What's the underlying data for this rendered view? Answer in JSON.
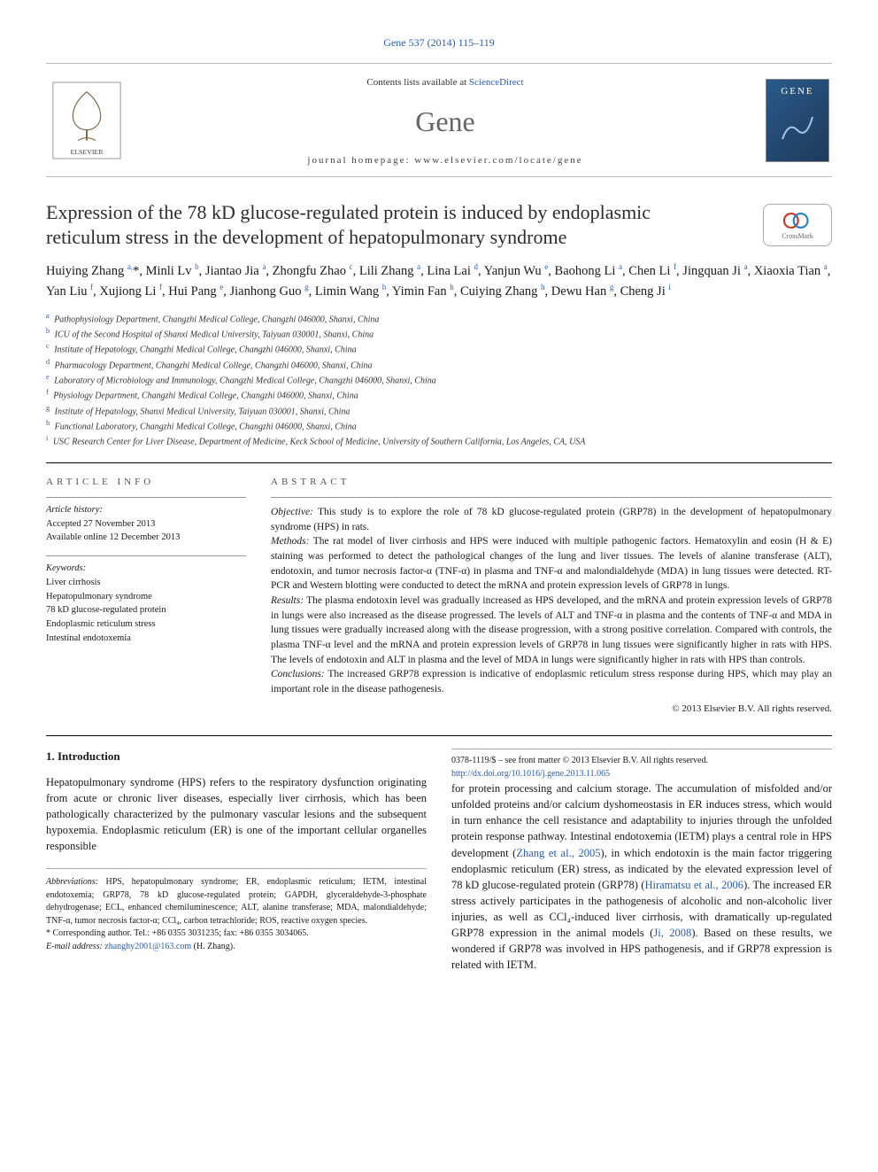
{
  "journal": {
    "top_citation": "Gene 537 (2014) 115–119",
    "contents_prefix": "Contents lists available at ",
    "contents_link": "ScienceDirect",
    "name": "Gene",
    "homepage": "journal homepage: www.elsevier.com/locate/gene",
    "cover_text": "GENE"
  },
  "paper": {
    "title": "Expression of the 78 kD glucose-regulated protein is induced by endoplasmic reticulum stress in the development of hepatopulmonary syndrome",
    "crossmark_label": "CrossMark"
  },
  "authors_html": "Huiying Zhang <sup>a,</sup>*, Minli Lv <sup>b</sup>, Jiantao Jia <sup>a</sup>, Zhongfu Zhao <sup>c</sup>, Lili Zhang <sup>a</sup>, Lina Lai <sup>d</sup>, Yanjun Wu <sup>e</sup>, Baohong Li <sup>a</sup>, Chen Li <sup>f</sup>, Jingquan Ji <sup>a</sup>, Xiaoxia Tian <sup>a</sup>, Yan Liu <sup>f</sup>, Xujiong Li <sup>f</sup>, Hui Pang <sup>e</sup>, Jianhong Guo <sup>g</sup>, Limin Wang <sup>h</sup>, Yimin Fan <sup>h</sup>, Cuiying Zhang <sup>h</sup>, Dewu Han <sup>g</sup>, Cheng Ji <sup>i</sup>",
  "affiliations": [
    {
      "key": "a",
      "text": "Pathophysiology Department, Changzhi Medical College, Changzhi 046000, Shanxi, China"
    },
    {
      "key": "b",
      "text": "ICU of the Second Hospital of Shanxi Medical University, Taiyuan 030001, Shanxi, China"
    },
    {
      "key": "c",
      "text": "Institute of Hepatology, Changzhi Medical College, Changzhi 046000, Shanxi, China"
    },
    {
      "key": "d",
      "text": "Pharmacology Department, Changzhi Medical College, Changzhi 046000, Shanxi, China"
    },
    {
      "key": "e",
      "text": "Laboratory of Microbiology and Immunology, Changzhi Medical College, Changzhi 046000, Shanxi, China"
    },
    {
      "key": "f",
      "text": "Physiology Department, Changzhi Medical College, Changzhi 046000, Shanxi, China"
    },
    {
      "key": "g",
      "text": "Institute of Hepatology, Shanxi Medical University, Taiyuan 030001, Shanxi, China"
    },
    {
      "key": "h",
      "text": "Functional Laboratory, Changzhi Medical College, Changzhi 046000, Shanxi, China"
    },
    {
      "key": "i",
      "text": "USC Research Center for Liver Disease, Department of Medicine, Keck School of Medicine, University of Southern California, Los Angeles, CA, USA"
    }
  ],
  "article_info": {
    "heading": "ARTICLE INFO",
    "history_head": "Article history:",
    "accepted": "Accepted 27 November 2013",
    "online": "Available online 12 December 2013",
    "keywords_head": "Keywords:",
    "keywords": [
      "Liver cirrhosis",
      "Hepatopulmonary syndrome",
      "78 kD glucose-regulated protein",
      "Endoplasmic reticulum stress",
      "Intestinal endotoxemia"
    ]
  },
  "abstract": {
    "heading": "ABSTRACT",
    "objective_head": "Objective:",
    "objective": "This study is to explore the role of 78 kD glucose-regulated protein (GRP78) in the development of hepatopulmonary syndrome (HPS) in rats.",
    "methods_head": "Methods:",
    "methods": "The rat model of liver cirrhosis and HPS were induced with multiple pathogenic factors. Hematoxylin and eosin (H & E) staining was performed to detect the pathological changes of the lung and liver tissues. The levels of alanine transferase (ALT), endotoxin, and tumor necrosis factor-α (TNF-α) in plasma and TNF-α and malondialdehyde (MDA) in lung tissues were detected. RT-PCR and Western blotting were conducted to detect the mRNA and protein expression levels of GRP78 in lungs.",
    "results_head": "Results:",
    "results": "The plasma endotoxin level was gradually increased as HPS developed, and the mRNA and protein expression levels of GRP78 in lungs were also increased as the disease progressed. The levels of ALT and TNF-α in plasma and the contents of TNF-α and MDA in lung tissues were gradually increased along with the disease progression, with a strong positive correlation. Compared with controls, the plasma TNF-α level and the mRNA and protein expression levels of GRP78 in lung tissues were significantly higher in rats with HPS. The levels of endotoxin and ALT in plasma and the level of MDA in lungs were significantly higher in rats with HPS than controls.",
    "conclusions_head": "Conclusions:",
    "conclusions": "The increased GRP78 expression is indicative of endoplasmic reticulum stress response during HPS, which may play an important role in the disease pathogenesis.",
    "copyright": "© 2013 Elsevier B.V. All rights reserved."
  },
  "intro": {
    "heading": "1. Introduction",
    "p1": "Hepatopulmonary syndrome (HPS) refers to the respiratory dysfunction originating from acute or chronic liver diseases, especially liver cirrhosis, which has been pathologically characterized by the pulmonary vascular lesions and the subsequent hypoxemia. Endoplasmic reticulum (ER) is one of the important cellular organelles responsible",
    "p2_pre": "for protein processing and calcium storage. The accumulation of misfolded and/or unfolded proteins and/or calcium dyshomeostasis in ER induces stress, which would in turn enhance the cell resistance and adaptability to injuries through the unfolded protein response pathway. Intestinal endotoxemia (IETM) plays a central role in HPS development (",
    "cite1": "Zhang et al., 2005",
    "p2_mid1": "), in which endotoxin is the main factor triggering endoplasmic reticulum (ER) stress, as indicated by the elevated expression level of 78 kD glucose-regulated protein (GRP78) (",
    "cite2": "Hiramatsu et al., 2006",
    "p2_mid2": "). The increased ER stress actively participates in the pathogenesis of alcoholic and non-alcoholic liver injuries, as well as CCl₄-induced liver cirrhosis, with dramatically up-regulated GRP78 expression in the animal models (",
    "cite3": "Ji, 2008",
    "p2_post": "). Based on these results, we wondered if GRP78 was involved in HPS pathogenesis, and if GRP78 expression is related with IETM."
  },
  "footnotes": {
    "abbrev_head": "Abbreviations:",
    "abbrev": "HPS, hepatopulmonary syndrome; ER, endoplasmic reticulum; IETM, intestinal endotoxemia; GRP78, 78 kD glucose-regulated protein; GAPDH, glyceraldehyde-3-phosphate dehydrogenase; ECL, enhanced chemiluminescence; ALT, alanine transferase; MDA, malondialdehyde; TNF-α, tumor necrosis factor-α; CCl₄, carbon tetrachloride; ROS, reactive oxygen species.",
    "corresponding": "* Corresponding author. Tel.: +86 0355 3031235; fax: +86 0355 3034065.",
    "email_head": "E-mail address:",
    "email": "zhanghy2001@163.com",
    "email_who": "(H. Zhang)."
  },
  "bottom": {
    "issn": "0378-1119/$ – see front matter © 2013 Elsevier B.V. All rights reserved.",
    "doi": "http://dx.doi.org/10.1016/j.gene.2013.11.065"
  },
  "colors": {
    "link": "#2a5db0",
    "text": "#1a1a1a",
    "muted": "#666666"
  }
}
